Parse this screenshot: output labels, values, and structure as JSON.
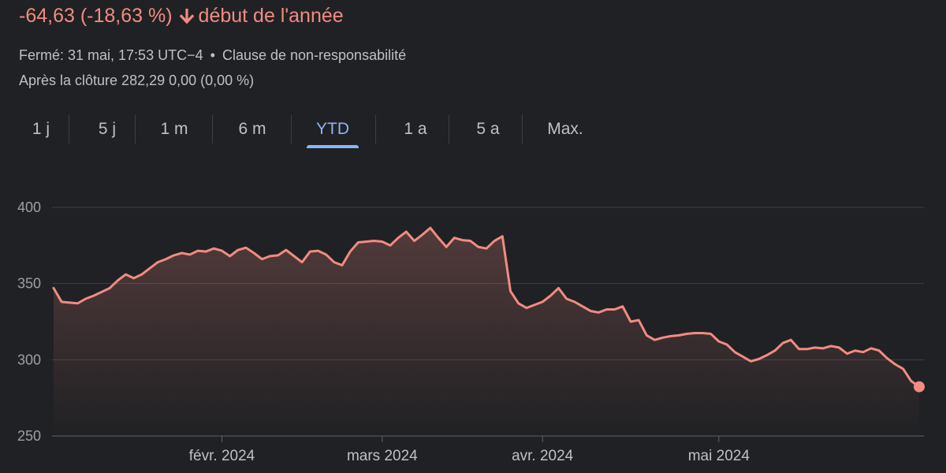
{
  "header": {
    "change_text": "-64,63 (-18,63 %)",
    "period_text": "début de l'année",
    "direction_icon": "arrow-down-icon",
    "change_color": "#f28b82",
    "closed_text": "Fermé: 31 mai, 17:53 UTC−4",
    "bullet": "•",
    "disclaimer_text": "Clause de non-responsabilité",
    "after_hours_text": "Après la clôture 282,29 0,00 (0,00 %)"
  },
  "ranges": {
    "selected": "YTD",
    "items": [
      {
        "label": "1 j"
      },
      {
        "label": "5 j"
      },
      {
        "label": "1 m"
      },
      {
        "label": "6 m"
      },
      {
        "label": "YTD"
      },
      {
        "label": "1 a"
      },
      {
        "label": "5 a"
      },
      {
        "label": "Max."
      }
    ]
  },
  "colors": {
    "background": "#202124",
    "line": "#f28b82",
    "grid": "#3c4043",
    "axis_baseline": "#5f6368",
    "selected_tab": "#8ab4f8"
  },
  "chart_data": {
    "type": "area",
    "ylim": [
      250,
      400
    ],
    "yticks": [
      400,
      350,
      300,
      250
    ],
    "xticks": [
      {
        "label": "févr. 2024",
        "index": 21
      },
      {
        "label": "mars 2024",
        "index": 41
      },
      {
        "label": "avr. 2024",
        "index": 61
      },
      {
        "label": "mai 2024",
        "index": 83
      }
    ],
    "grid": true,
    "last_point_marker": true,
    "series": [
      {
        "values": [
          347,
          338,
          337.5,
          337,
          340,
          342,
          344.5,
          347,
          352,
          356,
          353.5,
          356,
          360,
          364,
          366,
          368.5,
          370,
          369,
          371.5,
          371,
          373,
          371.5,
          368,
          372,
          373.5,
          370,
          366,
          368,
          368.5,
          372,
          368,
          364,
          371,
          371.5,
          369,
          364,
          362,
          371,
          377,
          377.5,
          378,
          377.5,
          375,
          380,
          384,
          378,
          382,
          386.5,
          380,
          374,
          380,
          378.5,
          378,
          374,
          373,
          378,
          381,
          345,
          337,
          334,
          336,
          338,
          342,
          347,
          340,
          338,
          335,
          332,
          331,
          333,
          333,
          335,
          325,
          326,
          316,
          313,
          314.5,
          315.5,
          316,
          317,
          317.5,
          317.5,
          317,
          312,
          310,
          305,
          302,
          299,
          300.5,
          303,
          306,
          311,
          313,
          307,
          307,
          308,
          307.5,
          309,
          308,
          304,
          306,
          305,
          307.5,
          306,
          301,
          297,
          294,
          286,
          282.29
        ]
      }
    ]
  }
}
